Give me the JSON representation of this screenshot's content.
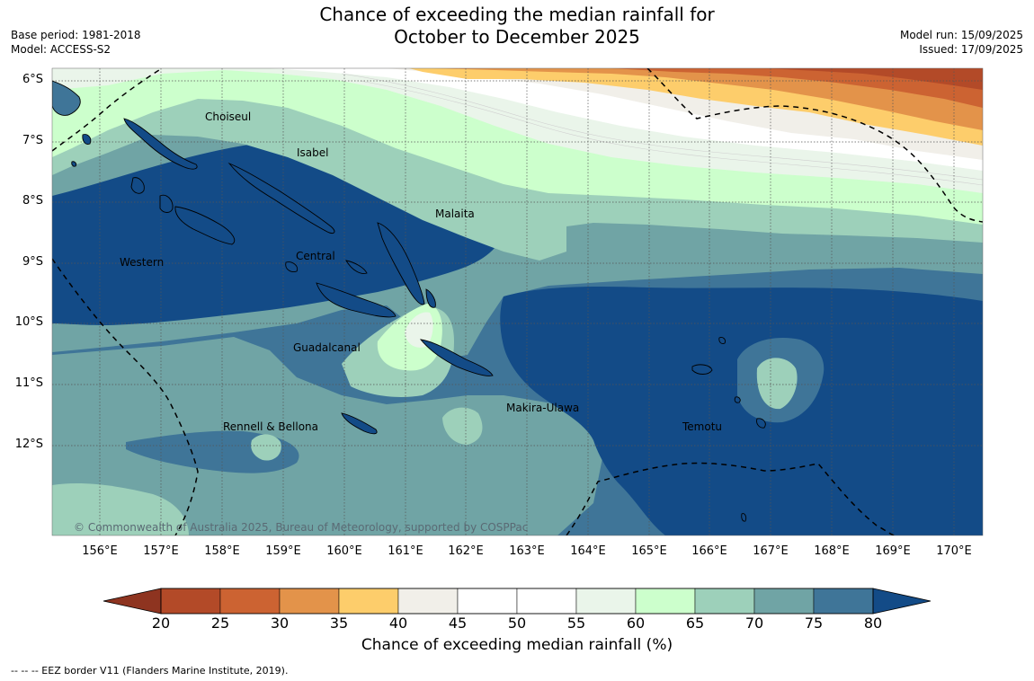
{
  "title": {
    "line1": "Chance of exceeding the median rainfall for",
    "line2": "October to December 2025"
  },
  "meta": {
    "base_period": "Base period: 1981-2018",
    "model": "Model: ACCESS-S2",
    "model_run": "Model run: 15/09/2025",
    "issued": "Issued: 17/09/2025"
  },
  "map": {
    "lat_labels": [
      "6°S",
      "7°S",
      "8°S",
      "9°S",
      "10°S",
      "11°S",
      "12°S"
    ],
    "lon_labels": [
      "156°E",
      "157°E",
      "158°E",
      "159°E",
      "160°E",
      "161°E",
      "162°E",
      "163°E",
      "164°E",
      "165°E",
      "166°E",
      "167°E",
      "168°E",
      "169°E",
      "170°E"
    ],
    "regions": {
      "choiseul": "Choiseul",
      "isabel": "Isabel",
      "malaita": "Malaita",
      "western": "Western",
      "central": "Central",
      "guadalcanal": "Guadalcanal",
      "makira": "Makira-Ulawa",
      "rennell": "Rennell & Bellona",
      "temotu": "Temotu"
    },
    "copyright": "© Commonwealth of Australia 2025, Bureau of Meteorology, supported by COSPPac"
  },
  "colorbar": {
    "ticks": [
      "20",
      "25",
      "30",
      "35",
      "40",
      "45",
      "50",
      "55",
      "60",
      "65",
      "70",
      "75",
      "80"
    ],
    "colors": [
      "#b34a28",
      "#cc6332",
      "#e3934a",
      "#fdcd6b",
      "#f1efe9",
      "#ffffff",
      "#ffffff",
      "#eaf5ea",
      "#ccffcc",
      "#9dd0ba",
      "#70a4a5",
      "#3f7598",
      "#134b87"
    ],
    "label": "Chance of exceeding median rainfall (%)"
  },
  "footer": "--  --  -- EEZ border V11 (Flanders Marine Institute, 2019)."
}
